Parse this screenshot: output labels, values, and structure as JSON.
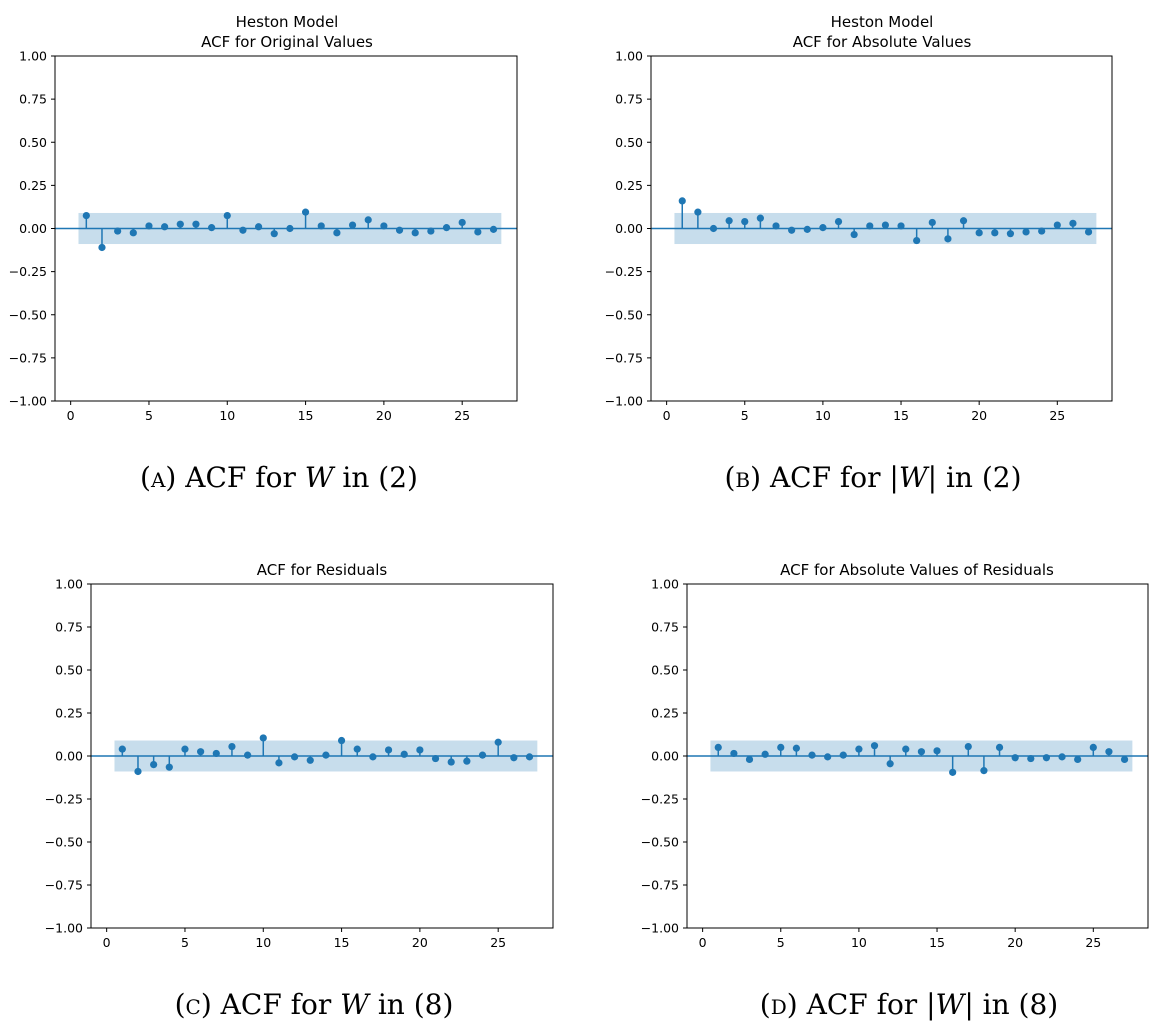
{
  "colors": {
    "marker": "#1f77b4",
    "band": "#1f77b4",
    "axis": "#000000"
  },
  "chart_data": [
    {
      "type": "scatter",
      "style": "stem",
      "title_lines": [
        "Heston Model",
        "ACF for Original Values"
      ],
      "caption": {
        "label": "(A)",
        "parts": [
          "ACF for ",
          "W",
          " in (2)"
        ]
      },
      "xlim": [
        -1,
        28.5
      ],
      "ylim": [
        -1.0,
        1.0
      ],
      "xticks": [
        0,
        5,
        10,
        15,
        20,
        25
      ],
      "yticks": [
        "1.00",
        "0.75",
        "0.50",
        "0.25",
        "0.00",
        "−0.25",
        "−0.50",
        "−0.75",
        "−1.00"
      ],
      "confidence_band": [
        -0.09,
        0.09
      ],
      "band_x": [
        0.5,
        27.5
      ],
      "x": [
        1,
        2,
        3,
        4,
        5,
        6,
        7,
        8,
        9,
        10,
        11,
        12,
        13,
        14,
        15,
        16,
        17,
        18,
        19,
        20,
        21,
        22,
        23,
        24,
        25,
        26,
        27
      ],
      "y": [
        0.075,
        -0.11,
        -0.015,
        -0.025,
        0.015,
        0.01,
        0.025,
        0.025,
        0.005,
        0.075,
        -0.01,
        0.01,
        -0.03,
        0.0,
        0.095,
        0.015,
        -0.025,
        0.02,
        0.05,
        0.015,
        -0.01,
        -0.025,
        -0.015,
        0.005,
        0.035,
        -0.02,
        -0.005
      ]
    },
    {
      "type": "scatter",
      "style": "stem",
      "title_lines": [
        "Heston Model",
        "ACF for Absolute Values"
      ],
      "caption": {
        "label": "(B)",
        "parts": [
          "ACF for |",
          "W",
          "| in (2)"
        ]
      },
      "xlim": [
        -1,
        28.5
      ],
      "ylim": [
        -1.0,
        1.0
      ],
      "xticks": [
        0,
        5,
        10,
        15,
        20,
        25
      ],
      "yticks": [
        "1.00",
        "0.75",
        "0.50",
        "0.25",
        "0.00",
        "−0.25",
        "−0.50",
        "−0.75",
        "−1.00"
      ],
      "confidence_band": [
        -0.09,
        0.09
      ],
      "band_x": [
        0.5,
        27.5
      ],
      "x": [
        1,
        2,
        3,
        4,
        5,
        6,
        7,
        8,
        9,
        10,
        11,
        12,
        13,
        14,
        15,
        16,
        17,
        18,
        19,
        20,
        21,
        22,
        23,
        24,
        25,
        26,
        27
      ],
      "y": [
        0.16,
        0.095,
        0.0,
        0.045,
        0.04,
        0.06,
        0.015,
        -0.01,
        -0.005,
        0.005,
        0.04,
        -0.035,
        0.015,
        0.02,
        0.015,
        -0.07,
        0.035,
        -0.06,
        0.045,
        -0.025,
        -0.025,
        -0.03,
        -0.02,
        -0.015,
        0.02,
        0.03,
        -0.02
      ]
    },
    {
      "type": "scatter",
      "style": "stem",
      "title_lines": [
        "ACF for Residuals"
      ],
      "caption": {
        "label": "(C)",
        "parts": [
          "ACF for ",
          "W",
          " in (8)"
        ]
      },
      "xlim": [
        -1,
        28.5
      ],
      "ylim": [
        -1.0,
        1.0
      ],
      "xticks": [
        0,
        5,
        10,
        15,
        20,
        25
      ],
      "yticks": [
        "1.00",
        "0.75",
        "0.50",
        "0.25",
        "0.00",
        "−0.25",
        "−0.50",
        "−0.75",
        "−1.00"
      ],
      "confidence_band": [
        -0.09,
        0.09
      ],
      "band_x": [
        0.5,
        27.5
      ],
      "x": [
        1,
        2,
        3,
        4,
        5,
        6,
        7,
        8,
        9,
        10,
        11,
        12,
        13,
        14,
        15,
        16,
        17,
        18,
        19,
        20,
        21,
        22,
        23,
        24,
        25,
        26,
        27
      ],
      "y": [
        0.04,
        -0.09,
        -0.05,
        -0.065,
        0.04,
        0.025,
        0.015,
        0.055,
        0.005,
        0.105,
        -0.04,
        -0.005,
        -0.025,
        0.005,
        0.09,
        0.04,
        -0.005,
        0.035,
        0.01,
        0.035,
        -0.015,
        -0.035,
        -0.03,
        0.005,
        0.08,
        -0.01,
        -0.005
      ]
    },
    {
      "type": "scatter",
      "style": "stem",
      "title_lines": [
        "ACF for Absolute Values of Residuals"
      ],
      "caption": {
        "label": "(D)",
        "parts": [
          "ACF for |",
          "W",
          "| in (8)"
        ]
      },
      "xlim": [
        -1,
        28.5
      ],
      "ylim": [
        -1.0,
        1.0
      ],
      "xticks": [
        0,
        5,
        10,
        15,
        20,
        25
      ],
      "yticks": [
        "1.00",
        "0.75",
        "0.50",
        "0.25",
        "0.00",
        "−0.25",
        "−0.50",
        "−0.75",
        "−1.00"
      ],
      "confidence_band": [
        -0.09,
        0.09
      ],
      "band_x": [
        0.5,
        27.5
      ],
      "x": [
        1,
        2,
        3,
        4,
        5,
        6,
        7,
        8,
        9,
        10,
        11,
        12,
        13,
        14,
        15,
        16,
        17,
        18,
        19,
        20,
        21,
        22,
        23,
        24,
        25,
        26,
        27
      ],
      "y": [
        0.05,
        0.015,
        -0.02,
        0.01,
        0.05,
        0.045,
        0.005,
        -0.005,
        0.005,
        0.04,
        0.06,
        -0.045,
        0.04,
        0.025,
        0.03,
        -0.095,
        0.055,
        -0.085,
        0.05,
        -0.01,
        -0.015,
        -0.01,
        -0.005,
        -0.02,
        0.05,
        0.025,
        -0.02
      ]
    }
  ]
}
